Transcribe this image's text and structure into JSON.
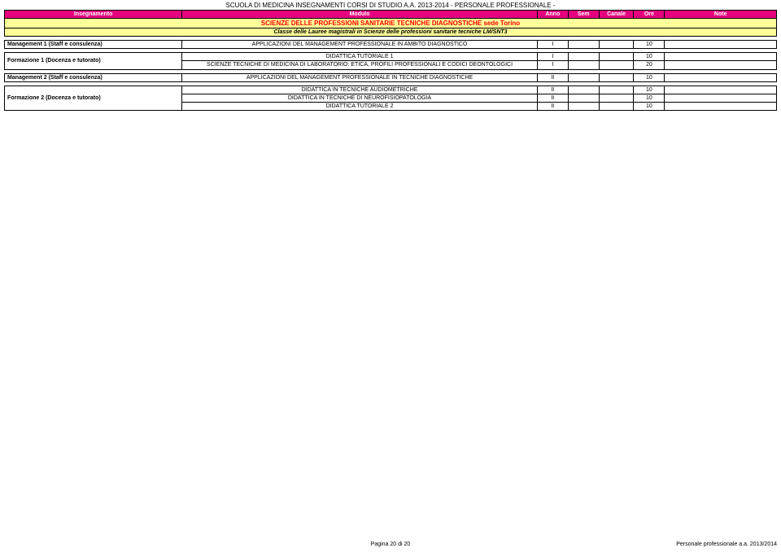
{
  "doc_title": "SCUOLA DI MEDICINA INSEGNAMENTI CORSI DI STUDIO A.A. 2013-2014 - PERSONALE PROFESSIONALE -",
  "header": {
    "insegnamento": "Insegnamento",
    "modulo": "Modulo",
    "anno": "Anno",
    "sem": "Sem",
    "canale": "Canale",
    "ore": "Ore",
    "note": "Note"
  },
  "section": {
    "title": "SCIENZE DELLE PROFESSIONI SANITARIE TECNICHE DIAGNOSTICHE sede Torino",
    "subtitle": "Classe delle Lauree magistrali in Scienze delle professioni sanitarie tecniche LM/SNT3"
  },
  "rows": {
    "r1": {
      "insegnamento": "Management 1 (Staff e consulenza)",
      "modulo": "APPLICAZIONI DEL MANAGEMENT PROFESSIONALE IN AMBITO DIAGNOSTICO",
      "anno": "I",
      "sem": "",
      "canale": "",
      "ore": "10",
      "note": ""
    },
    "r2": {
      "insegnamento": "Formazione 1 (Docenza e tutorato)",
      "sub1": {
        "modulo": "DIDATTICA TUTORIALE 1",
        "anno": "I",
        "sem": "",
        "canale": "",
        "ore": "10",
        "note": ""
      },
      "sub2": {
        "modulo": "SCIENZE TECNICHE DI MEDICINA DI LABORATORIO: ETICA, PROFILI PROFESSIONALI E CODICI DEONTOLOGICI",
        "anno": "I",
        "sem": "",
        "canale": "",
        "ore": "20",
        "note": ""
      }
    },
    "r3": {
      "insegnamento": "Management 2 (Staff e consulenza)",
      "modulo": "APPLICAZIONI DEL MANAGEMENT PROFESSIONALE IN TECNICHE DIAGNOSTICHE",
      "anno": "II",
      "sem": "",
      "canale": "",
      "ore": "10",
      "note": ""
    },
    "r4": {
      "insegnamento": "Formazione 2 (Docenza e tutorato)",
      "sub1": {
        "modulo": "DIDATTICA IN TECNICHE AUDIOMETRICHE",
        "anno": "II",
        "sem": "",
        "canale": "",
        "ore": "10",
        "note": ""
      },
      "sub2": {
        "modulo": "DIDATTICA IN TECNICHE DI NEUROFISIOPATOLOGIA",
        "anno": "II",
        "sem": "",
        "canale": "",
        "ore": "10",
        "note": ""
      },
      "sub3": {
        "modulo": "DIDATTICA TUTORIALE 2",
        "anno": "II",
        "sem": "",
        "canale": "",
        "ore": "10",
        "note": ""
      }
    }
  },
  "footer": {
    "left": "",
    "center": "Pagina 20 di 20",
    "right": "Personale professionale a.a. 2013/2014"
  },
  "colors": {
    "header_bg": "#e6007e",
    "header_text": "#ffffff",
    "section_bg": "#ffff99",
    "section_title_text": "#ff0000",
    "section_subtitle_text": "#000000",
    "border": "#000000",
    "body_bg": "#ffffff"
  },
  "fonts": {
    "title_size": 8,
    "header_size": 7,
    "body_size": 7
  }
}
